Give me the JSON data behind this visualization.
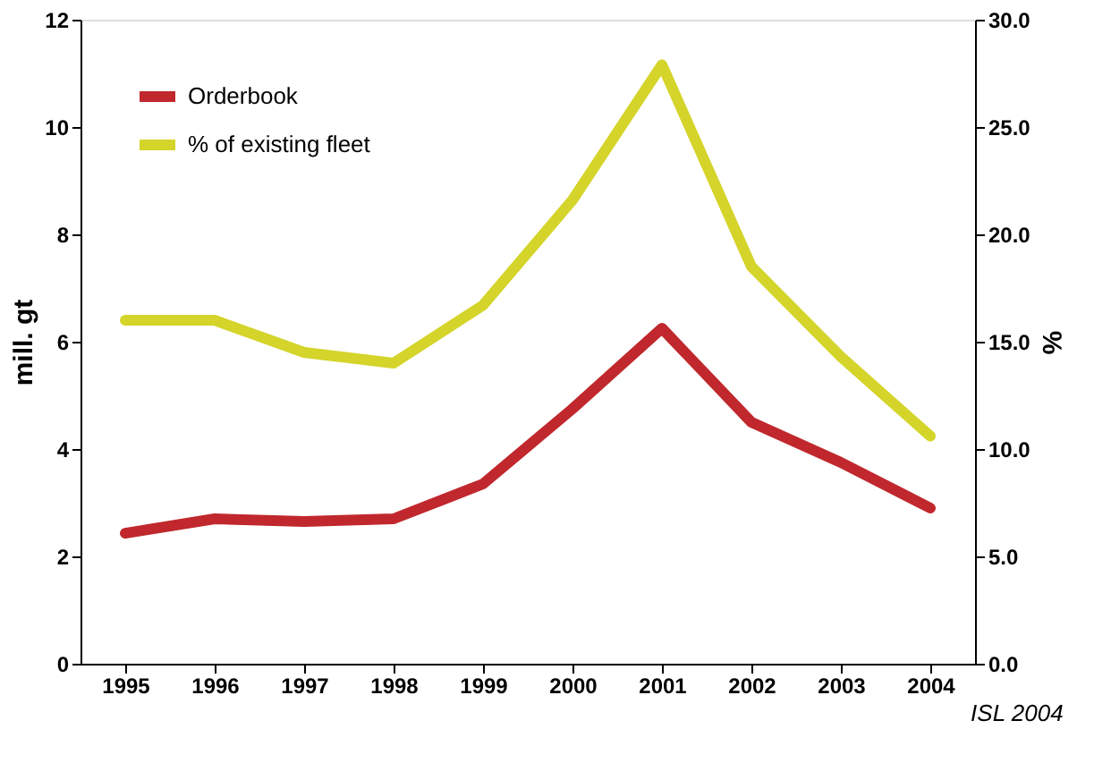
{
  "chart_data": {
    "type": "line",
    "categories": [
      "1995",
      "1996",
      "1997",
      "1998",
      "1999",
      "2000",
      "2001",
      "2002",
      "2003",
      "2004"
    ],
    "series": [
      {
        "name": "Orderbook",
        "color": "#c0282d",
        "values": [
          2.43,
          2.7,
          2.65,
          2.7,
          3.35,
          4.75,
          6.25,
          4.5,
          3.75,
          2.9
        ]
      },
      {
        "name": "% of existing fleet",
        "color": "#d4d42a",
        "axis": "y2",
        "values": [
          16.0,
          16.0,
          14.5,
          14.0,
          16.7,
          21.6,
          27.9,
          18.5,
          14.3,
          10.6
        ]
      }
    ],
    "ylabel": "mill. gt",
    "y2label": "%",
    "ylim": [
      0,
      12
    ],
    "yticks": [
      0,
      2,
      4,
      6,
      8,
      10,
      12
    ],
    "y2lim": [
      0,
      30
    ],
    "y2ticks": [
      {
        "value": 0,
        "label": "0.0"
      },
      {
        "value": 5,
        "label": "5.0"
      },
      {
        "value": 10,
        "label": "10.0"
      },
      {
        "value": 15,
        "label": "15.0"
      },
      {
        "value": 20,
        "label": "20.0"
      },
      {
        "value": 25,
        "label": "25.0"
      },
      {
        "value": 30,
        "label": "30.0"
      }
    ],
    "grid": false,
    "legend": "top left",
    "marker": "none",
    "line_style": "solid",
    "annotations": [
      "ISL 2004"
    ]
  }
}
